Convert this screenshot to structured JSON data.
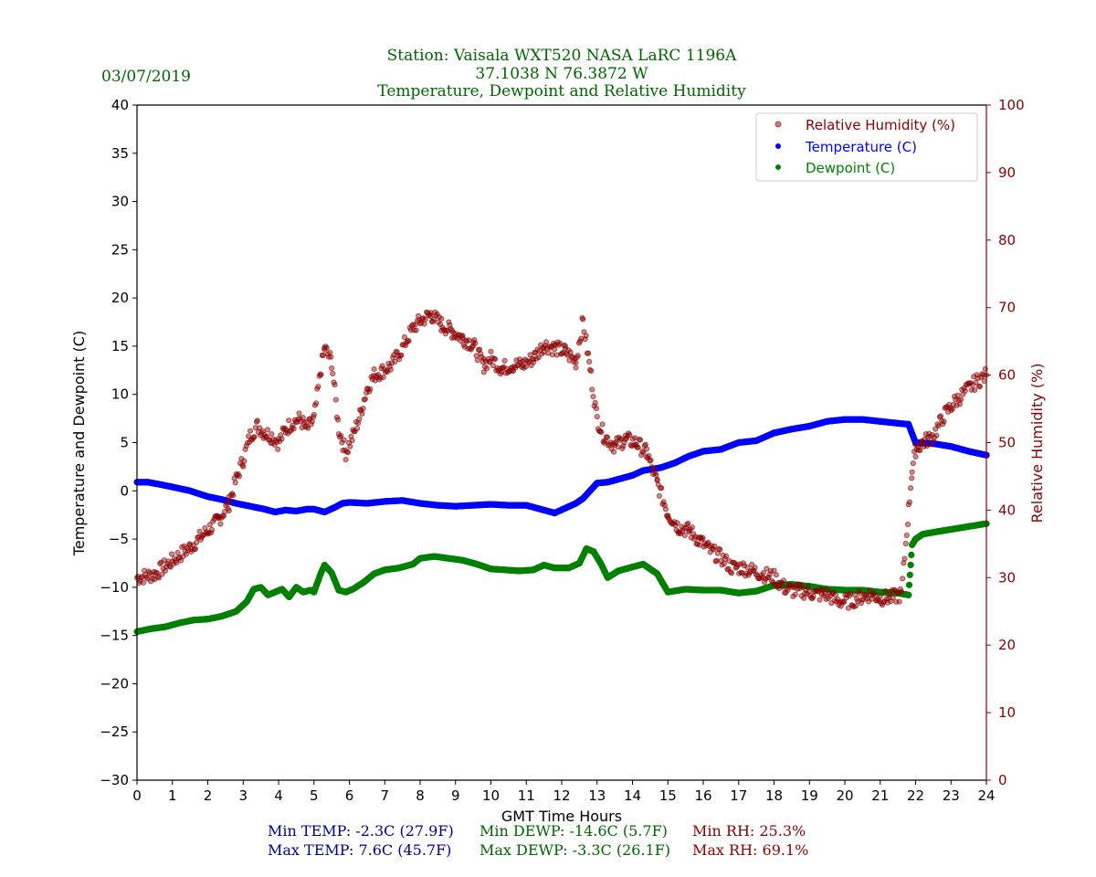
{
  "chart_data": {
    "type": "scatter",
    "date": "03/07/2019",
    "title_lines": [
      "Station:  Vaisala WXT520  NASA LaRC 1196A",
      "37.1038 N 76.3872 W",
      "Temperature, Dewpoint and Relative Humidity"
    ],
    "xlabel": "GMT Time Hours",
    "ylabel_left": "Temperature and Dewpoint (C)",
    "ylabel_right": "Relative Humidity (%)",
    "xlim": [
      0,
      24
    ],
    "ylim_left": [
      -30,
      40
    ],
    "ylim_right": [
      0,
      100
    ],
    "x_ticks": [
      "0",
      "1",
      "2",
      "3",
      "4",
      "5",
      "6",
      "7",
      "8",
      "9",
      "10",
      "11",
      "12",
      "13",
      "14",
      "15",
      "16",
      "17",
      "18",
      "19",
      "20",
      "21",
      "22",
      "23",
      "24"
    ],
    "y_ticks_left": [
      "40",
      "35",
      "30",
      "25",
      "20",
      "15",
      "10",
      "5",
      "0",
      "−5",
      "−10",
      "−15",
      "−20",
      "−25",
      "−30"
    ],
    "y_ticks_right": [
      "100",
      "90",
      "80",
      "70",
      "60",
      "50",
      "40",
      "30",
      "20",
      "10",
      "0"
    ],
    "grid": false,
    "legend_position": "top-right",
    "colors": {
      "temperature": "#0000ff",
      "dewpoint": "#008000",
      "rh": "#8b0000",
      "title": "#006400",
      "stat_temp": "#00008b",
      "stat_dewp": "#006400",
      "stat_rh": "#8b0000"
    },
    "series": [
      {
        "name": "Relative Humidity (%)",
        "axis": "right",
        "x": [
          0,
          0.5,
          1,
          1.5,
          2,
          2.3,
          2.6,
          2.8,
          3.0,
          3.2,
          3.4,
          3.6,
          3.8,
          4.0,
          4.2,
          4.4,
          4.6,
          4.8,
          5.0,
          5.2,
          5.3,
          5.5,
          5.7,
          5.9,
          6.1,
          6.3,
          6.5,
          6.7,
          6.9,
          7.2,
          7.5,
          7.8,
          8.0,
          8.3,
          8.6,
          8.9,
          9.2,
          9.5,
          9.8,
          10.0,
          10.3,
          10.6,
          10.9,
          11.2,
          11.5,
          11.8,
          12.1,
          12.4,
          12.6,
          12.8,
          13.0,
          13.2,
          13.5,
          13.8,
          14.1,
          14.4,
          14.7,
          15.0,
          15.3,
          15.6,
          15.9,
          16.2,
          16.5,
          16.8,
          17.1,
          17.4,
          17.7,
          18.0,
          18.3,
          18.6,
          18.9,
          19.2,
          19.5,
          19.8,
          20.1,
          20.4,
          20.7,
          21.0,
          21.3,
          21.6,
          21.8,
          21.9,
          22.0,
          22.2,
          22.5,
          22.8,
          23.1,
          23.4,
          23.7,
          24
        ],
        "y": [
          30,
          30.5,
          32.5,
          34.5,
          37,
          38.5,
          41,
          44.5,
          47.5,
          51,
          52.5,
          51.5,
          51,
          50,
          52,
          53,
          53.5,
          52,
          53.5,
          61,
          64,
          62,
          52,
          48.5,
          51,
          54,
          58,
          60,
          60.5,
          61.5,
          64,
          67,
          68,
          69,
          67.5,
          66.5,
          65.5,
          64.5,
          61.5,
          62.5,
          61,
          61.5,
          61.5,
          62.5,
          64.5,
          64,
          63.5,
          62,
          68,
          61,
          53.5,
          51,
          49.5,
          50.5,
          50,
          48.5,
          44,
          39.5,
          37.5,
          37,
          35.5,
          34,
          33,
          31.5,
          31.5,
          31,
          30.5,
          30,
          28.5,
          28,
          28,
          27.5,
          27.5,
          26.5,
          26.5,
          27,
          27.5,
          27,
          27,
          27.5,
          40,
          46,
          49,
          50,
          51,
          54,
          56,
          57.5,
          59,
          60
        ]
      },
      {
        "name": "Temperature (C)",
        "axis": "left",
        "x": [
          0,
          0.3,
          0.6,
          1,
          1.5,
          2,
          2.4,
          2.8,
          3.2,
          3.6,
          3.9,
          4.2,
          4.5,
          4.8,
          5.0,
          5.3,
          5.6,
          5.8,
          6.0,
          6.5,
          7.0,
          7.5,
          8.0,
          8.5,
          9.0,
          9.5,
          10.0,
          10.5,
          11.0,
          11.5,
          11.8,
          12.1,
          12.4,
          12.6,
          12.8,
          13.0,
          13.3,
          13.6,
          14.0,
          14.3,
          14.8,
          15.2,
          15.6,
          16.0,
          16.5,
          17.0,
          17.5,
          18.0,
          18.5,
          19.0,
          19.5,
          20.0,
          20.5,
          21.0,
          21.5,
          21.8,
          22.0,
          22.5,
          23.0,
          23.5,
          24
        ],
        "y": [
          0.9,
          0.9,
          0.7,
          0.4,
          0,
          -0.6,
          -0.9,
          -1.3,
          -1.6,
          -1.9,
          -2.2,
          -2.0,
          -2.1,
          -1.9,
          -1.9,
          -2.2,
          -1.7,
          -1.3,
          -1.2,
          -1.3,
          -1.1,
          -1.0,
          -1.3,
          -1.5,
          -1.6,
          -1.5,
          -1.4,
          -1.5,
          -1.5,
          -2.0,
          -2.3,
          -1.8,
          -1.3,
          -0.8,
          0.0,
          0.8,
          0.9,
          1.2,
          1.6,
          2.1,
          2.4,
          2.9,
          3.6,
          4.1,
          4.3,
          5.0,
          5.2,
          6.0,
          6.4,
          6.7,
          7.2,
          7.4,
          7.4,
          7.2,
          7.0,
          6.9,
          5.0,
          4.9,
          4.6,
          4.1,
          3.7
        ]
      },
      {
        "name": "Dewpoint (C)",
        "axis": "left",
        "x": [
          0,
          0.4,
          0.8,
          1.2,
          1.6,
          2.0,
          2.4,
          2.8,
          3.1,
          3.3,
          3.5,
          3.7,
          3.9,
          4.1,
          4.3,
          4.5,
          4.7,
          4.9,
          5.0,
          5.2,
          5.3,
          5.5,
          5.7,
          5.9,
          6.1,
          6.4,
          6.7,
          7.0,
          7.4,
          7.8,
          8.0,
          8.4,
          8.8,
          9.2,
          9.6,
          10.0,
          10.4,
          10.8,
          11.2,
          11.5,
          11.8,
          12.2,
          12.5,
          12.7,
          12.9,
          13.1,
          13.3,
          13.6,
          14.0,
          14.3,
          14.7,
          15.0,
          15.5,
          16.0,
          16.5,
          17.0,
          17.5,
          18.0,
          18.5,
          19.0,
          19.5,
          20.0,
          20.5,
          21.0,
          21.5,
          21.8,
          21.9,
          22.0,
          22.2,
          22.5,
          23.0,
          23.5,
          24
        ],
        "y": [
          -14.6,
          -14.3,
          -14.1,
          -13.7,
          -13.4,
          -13.3,
          -13.0,
          -12.5,
          -11.5,
          -10.2,
          -10.0,
          -10.8,
          -10.5,
          -10.2,
          -11.0,
          -10.0,
          -10.5,
          -10.3,
          -10.5,
          -8.5,
          -7.7,
          -8.5,
          -10.3,
          -10.5,
          -10.2,
          -9.5,
          -8.6,
          -8.2,
          -8.0,
          -7.6,
          -7.0,
          -6.8,
          -7.0,
          -7.2,
          -7.6,
          -8.1,
          -8.2,
          -8.3,
          -8.2,
          -7.7,
          -8.0,
          -8.0,
          -7.5,
          -6.0,
          -6.3,
          -7.5,
          -9.0,
          -8.3,
          -7.9,
          -7.6,
          -8.6,
          -10.5,
          -10.2,
          -10.3,
          -10.3,
          -10.6,
          -10.4,
          -9.8,
          -9.7,
          -9.9,
          -10.2,
          -10.3,
          -10.3,
          -10.5,
          -10.6,
          -10.8,
          -5.6,
          -5.0,
          -4.5,
          -4.3,
          -4.0,
          -3.7,
          -3.4
        ]
      }
    ],
    "stats": {
      "min_temp": "Min TEMP: -2.3C (27.9F)",
      "max_temp": "Max TEMP: 7.6C (45.7F)",
      "min_dewp": "Min DEWP: -14.6C (5.7F)",
      "max_dewp": "Max DEWP: -3.3C (26.1F)",
      "min_rh": "Min RH: 25.3%",
      "max_rh": "Max RH: 69.1%"
    }
  }
}
